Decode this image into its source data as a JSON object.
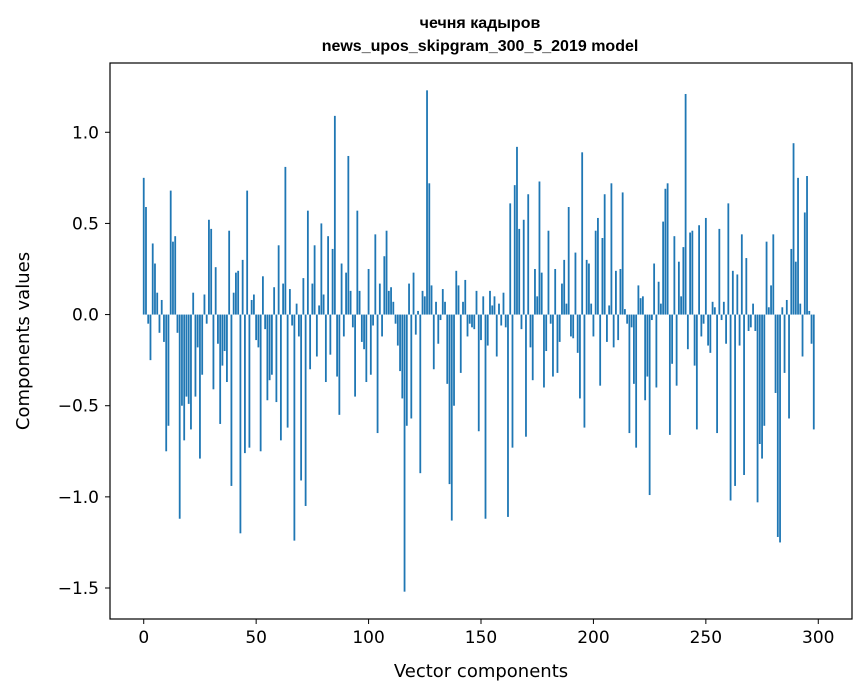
{
  "chart_data": {
    "type": "bar",
    "title_line1": "чечня кадыров",
    "title_line2": "news_upos_skipgram_300_5_2019 model",
    "xlabel": "Vector components",
    "ylabel": "Components values",
    "xlim": [
      -15,
      315
    ],
    "ylim": [
      -1.67,
      1.38
    ],
    "xticks": [
      0,
      50,
      100,
      150,
      200,
      250,
      300
    ],
    "xtick_labels": [
      "0",
      "50",
      "100",
      "150",
      "200",
      "250",
      "300"
    ],
    "yticks": [
      -1.5,
      -1.0,
      -0.5,
      0.0,
      0.5,
      1.0
    ],
    "ytick_labels": [
      "−1.5",
      "−1.0",
      "−0.5",
      "0.0",
      "0.5",
      "1.0"
    ],
    "bar_color": "#1f77b4",
    "grid": false,
    "values": [
      0.75,
      0.59,
      -0.05,
      -0.25,
      0.39,
      0.28,
      0.12,
      -0.1,
      0.08,
      -0.15,
      -0.75,
      -0.61,
      0.68,
      0.4,
      0.43,
      -0.1,
      -1.12,
      -0.5,
      -0.69,
      -0.45,
      -0.49,
      -0.63,
      0.12,
      -0.45,
      -0.18,
      -0.79,
      -0.33,
      0.11,
      -0.05,
      0.52,
      0.47,
      -0.41,
      0.26,
      -0.16,
      -0.6,
      -0.28,
      -0.2,
      -0.37,
      0.46,
      -0.94,
      0.12,
      0.23,
      0.24,
      -1.2,
      0.3,
      -0.76,
      0.68,
      -0.73,
      0.08,
      0.11,
      -0.14,
      -0.18,
      -0.75,
      0.21,
      -0.08,
      -0.47,
      -0.36,
      -0.33,
      0.15,
      -0.48,
      0.38,
      -0.69,
      0.17,
      0.81,
      -0.62,
      0.14,
      -0.06,
      -1.24,
      0.06,
      -0.12,
      -0.91,
      0.2,
      -1.05,
      0.57,
      -0.3,
      0.17,
      0.38,
      -0.23,
      0.05,
      0.5,
      0.11,
      -0.37,
      0.43,
      -0.22,
      0.36,
      1.09,
      -0.34,
      -0.55,
      0.28,
      -0.12,
      0.23,
      0.87,
      0.13,
      -0.07,
      -0.45,
      0.57,
      0.13,
      -0.15,
      -0.19,
      -0.37,
      0.25,
      -0.33,
      -0.06,
      0.44,
      -0.65,
      0.17,
      -0.12,
      0.32,
      0.46,
      0.13,
      0.15,
      0.07,
      -0.05,
      -0.17,
      -0.31,
      -0.46,
      -1.52,
      -0.61,
      0.17,
      -0.57,
      0.23,
      -0.11,
      0.02,
      -0.87,
      0.13,
      0.1,
      1.23,
      0.72,
      0.16,
      -0.3,
      0.07,
      -0.16,
      -0.03,
      0.14,
      0.07,
      -0.38,
      -0.93,
      -1.13,
      -0.5,
      0.24,
      0.16,
      -0.32,
      0.07,
      0.19,
      -0.12,
      -0.05,
      -0.07,
      -0.08,
      0.13,
      -0.64,
      -0.14,
      0.1,
      -1.12,
      -0.17,
      0.13,
      0.05,
      0.1,
      -0.23,
      0.06,
      -0.06,
      0.12,
      -0.07,
      -1.11,
      0.61,
      -0.73,
      0.71,
      0.92,
      0.47,
      -0.08,
      0.52,
      -0.67,
      0.66,
      -0.18,
      -0.36,
      0.25,
      0.1,
      0.73,
      0.23,
      -0.4,
      -0.2,
      0.46,
      -0.05,
      -0.34,
      0.25,
      -0.32,
      -0.15,
      0.17,
      0.3,
      0.06,
      0.59,
      -0.12,
      -0.13,
      0.34,
      -0.21,
      -0.46,
      0.89,
      -0.62,
      0.3,
      0.28,
      0.06,
      -0.12,
      0.46,
      0.53,
      -0.39,
      0.42,
      0.66,
      -0.15,
      0.05,
      0.72,
      -0.18,
      0.24,
      -0.14,
      0.25,
      0.67,
      0.03,
      -0.05,
      -0.65,
      -0.07,
      -0.38,
      -0.73,
      0.16,
      0.09,
      0.1,
      -0.47,
      -0.34,
      -0.99,
      -0.03,
      0.28,
      -0.4,
      0.18,
      0.06,
      0.51,
      0.69,
      0.72,
      -0.66,
      -0.27,
      0.43,
      -0.39,
      0.29,
      0.1,
      0.37,
      1.21,
      -0.19,
      0.45,
      0.46,
      -0.28,
      -0.63,
      0.49,
      -0.12,
      -0.05,
      0.53,
      -0.17,
      -0.21,
      0.07,
      0.04,
      -0.65,
      0.47,
      -0.03,
      0.07,
      -0.16,
      0.61,
      -1.02,
      0.24,
      -0.94,
      0.22,
      -0.17,
      0.44,
      -0.88,
      0.31,
      -0.09,
      -0.07,
      0.06,
      -0.09,
      -1.03,
      -0.71,
      -0.79,
      -0.61,
      0.4,
      0.04,
      0.16,
      0.44,
      -0.43,
      -1.22,
      -1.25,
      0.04,
      -0.32,
      0.08,
      -0.57,
      0.36,
      0.94,
      0.29,
      0.75,
      0.06,
      -0.23,
      0.56,
      0.76,
      0.02,
      -0.16,
      -0.63
    ]
  }
}
